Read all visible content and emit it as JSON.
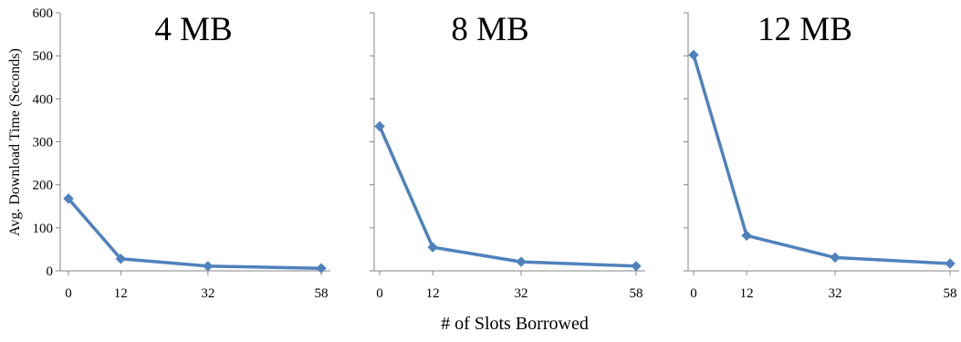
{
  "chart_data": [
    {
      "type": "line",
      "title": "4 MB",
      "x": [
        0,
        12,
        32,
        58
      ],
      "series": [
        {
          "values": [
            168,
            28,
            11,
            6
          ]
        }
      ],
      "ylabel": "Avg. Download Time (Seconds)",
      "xlabel": "",
      "ylim": [
        0,
        600
      ],
      "yticks": [
        0,
        100,
        200,
        300,
        400,
        500,
        600
      ],
      "line_color": "#4F81BD"
    },
    {
      "type": "line",
      "title": "8 MB",
      "x": [
        0,
        12,
        32,
        58
      ],
      "series": [
        {
          "values": [
            336,
            55,
            21,
            11
          ]
        }
      ],
      "xlabel": "# of Slots Borrowed",
      "ylim": [
        0,
        600
      ],
      "line_color": "#4F81BD"
    },
    {
      "type": "line",
      "title": "12 MB",
      "x": [
        0,
        12,
        32,
        58
      ],
      "series": [
        {
          "values": [
            502,
            82,
            31,
            17
          ]
        }
      ],
      "xlabel": "",
      "ylim": [
        0,
        600
      ],
      "line_color": "#4F81BD"
    }
  ]
}
